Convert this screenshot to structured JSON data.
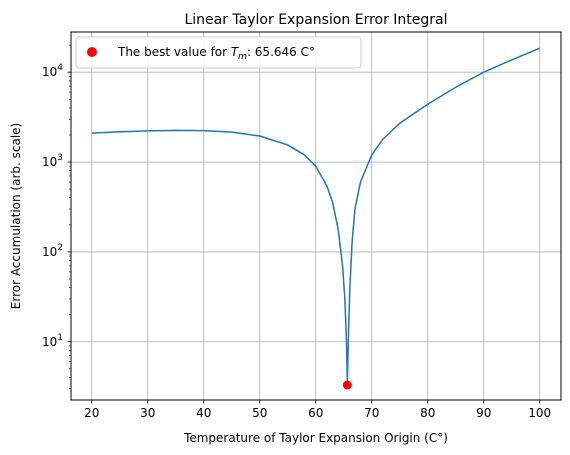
{
  "chart_data": {
    "type": "line",
    "title": "Linear Taylor Expansion Error Integral",
    "xlabel": "Temperature of Taylor Expansion Origin (C°)",
    "ylabel": "Error Accumulation (arb. scale)",
    "xlim": [
      16.3,
      103.8
    ],
    "ylim": [
      2.25,
      28000
    ],
    "yscale": "log",
    "grid": true,
    "line_color": "#1f77b4",
    "marker_color": "#ff0000",
    "x_ticks": [
      20,
      30,
      40,
      50,
      60,
      70,
      80,
      90,
      100
    ],
    "x_tick_labels": [
      "20",
      "30",
      "40",
      "50",
      "60",
      "70",
      "80",
      "90",
      "100"
    ],
    "y_ticks": [
      10,
      100,
      1000,
      10000
    ],
    "y_tick_labels": [
      {
        "base": "10",
        "exp": "1"
      },
      {
        "base": "10",
        "exp": "2"
      },
      {
        "base": "10",
        "exp": "3"
      },
      {
        "base": "10",
        "exp": "4"
      }
    ],
    "series": [
      {
        "x": [
          20,
          25,
          30,
          35,
          40,
          45,
          50,
          55,
          58,
          60,
          62,
          63,
          64,
          64.8,
          65.2,
          65.45,
          65.6,
          65.646,
          65.7,
          65.85,
          66.1,
          66.5,
          67,
          68,
          70,
          72,
          75,
          80,
          85,
          90,
          95,
          100
        ],
        "values": [
          2100,
          2170,
          2220,
          2250,
          2240,
          2150,
          1950,
          1550,
          1200,
          900,
          540,
          360,
          180,
          70,
          30,
          12,
          5,
          3.3,
          5,
          12,
          40,
          130,
          300,
          600,
          1200,
          1800,
          2700,
          4400,
          6800,
          10000,
          13700,
          18500
        ]
      }
    ],
    "marker": {
      "x": 65.646,
      "y": 3.3
    },
    "legend": {
      "position": "top-left",
      "prefix": "The best value for ",
      "symbol": "T",
      "subscript": "m",
      "suffix": ": 65.646 C°"
    }
  }
}
